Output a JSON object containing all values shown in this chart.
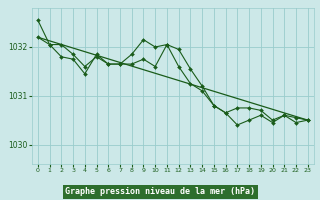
{
  "title": "Graphe pression niveau de la mer (hPa)",
  "bg_color": "#cce8e8",
  "plot_bg": "#cce8e8",
  "grid_color": "#99cccc",
  "line_color": "#1a5c1a",
  "xlabel_bg": "#2d6e2d",
  "xlabel_fg": "#ffffff",
  "xlim": [
    -0.5,
    23.5
  ],
  "ylim": [
    1029.6,
    1032.8
  ],
  "yticks": [
    1030,
    1031,
    1032
  ],
  "xticks": [
    0,
    1,
    2,
    3,
    4,
    5,
    6,
    7,
    8,
    9,
    10,
    11,
    12,
    13,
    14,
    15,
    16,
    17,
    18,
    19,
    20,
    21,
    22,
    23
  ],
  "trend_x": [
    0,
    23
  ],
  "trend_y": [
    1032.2,
    1030.5
  ],
  "series1_x": [
    0,
    1,
    2,
    3,
    4,
    5,
    6,
    7,
    8,
    9,
    10,
    11,
    12,
    13,
    14,
    15,
    16,
    17,
    18,
    19,
    20,
    21,
    22,
    23
  ],
  "series1_y": [
    1032.55,
    1032.05,
    1032.05,
    1031.85,
    1031.6,
    1031.8,
    1031.65,
    1031.65,
    1031.85,
    1032.15,
    1032.0,
    1032.05,
    1031.95,
    1031.55,
    1031.2,
    1030.8,
    1030.65,
    1030.4,
    1030.5,
    1030.6,
    1030.45,
    1030.6,
    1030.45,
    1030.5
  ],
  "series2_x": [
    0,
    1,
    2,
    3,
    4,
    5,
    6,
    7,
    8,
    9,
    10,
    11,
    12,
    13,
    14,
    15,
    16,
    17,
    18,
    19,
    20,
    21,
    22,
    23
  ],
  "series2_y": [
    1032.2,
    1032.05,
    1031.8,
    1031.75,
    1031.45,
    1031.85,
    1031.65,
    1031.65,
    1031.65,
    1031.75,
    1031.6,
    1032.05,
    1031.6,
    1031.25,
    1031.1,
    1030.8,
    1030.65,
    1030.75,
    1030.75,
    1030.7,
    1030.5,
    1030.6,
    1030.55,
    1030.5
  ]
}
